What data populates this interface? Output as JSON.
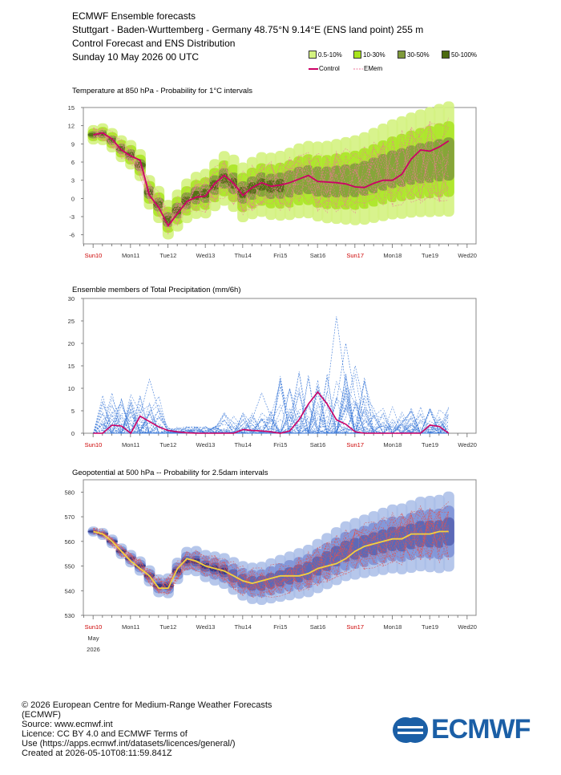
{
  "header": {
    "line1": "ECMWF Ensemble forecasts",
    "line2": "Stuttgart - Baden-Wurttemberg - Germany 48.75°N 9.14°E (ENS land point) 255 m",
    "line3": "Control Forecast and ENS Distribution",
    "line4": "Sunday 10 May 2026 00 UTC"
  },
  "legend": {
    "bins": [
      {
        "label": "0.5-10%",
        "color": "#d4f281"
      },
      {
        "label": "10-30%",
        "color": "#a8e41e"
      },
      {
        "label": "30-50%",
        "color": "#7f9a3b"
      },
      {
        "label": "50-100%",
        "color": "#4b6a10"
      }
    ],
    "control_label": "Control",
    "emem_label": "EMem"
  },
  "days": [
    "Sun10",
    "Mon11",
    "Tue12",
    "Wed13",
    "Thu14",
    "Fri15",
    "Sat16",
    "Sun17",
    "Mon18",
    "Tue19",
    "Wed20"
  ],
  "weekend_days": [
    "Sun10",
    "Sun17"
  ],
  "month_label": "May",
  "year_label": "2026",
  "chart_data": [
    {
      "type": "line",
      "title": "Temperature at 850 hPa - Probability for 1°C intervals",
      "ylim": [
        -7.5,
        15
      ],
      "yticks": [
        15,
        12,
        9,
        6,
        3,
        0,
        -3,
        -6
      ],
      "x_days": [
        0,
        0.25,
        0.5,
        0.75,
        1,
        1.25,
        1.5,
        1.75,
        2,
        2.25,
        2.5,
        2.75,
        3,
        3.25,
        3.5,
        3.75,
        4,
        4.25,
        4.5,
        4.75,
        5,
        5.25,
        5.5,
        5.75,
        6,
        6.25,
        6.5,
        6.75,
        7,
        7.25,
        7.5,
        7.75,
        8,
        8.25,
        8.5,
        8.75,
        9,
        9.25,
        9.5
      ],
      "series": [
        {
          "name": "Control",
          "color": "#cc0066",
          "values": [
            10.5,
            10.8,
            9.8,
            8.0,
            7.0,
            6.3,
            0.5,
            -1.5,
            -4.5,
            -2.5,
            -0.5,
            0.2,
            0.4,
            2.5,
            3.8,
            2.5,
            0.5,
            1.8,
            2.6,
            2.0,
            2.2,
            2.6,
            3.2,
            3.8,
            2.8,
            2.7,
            2.6,
            2.4,
            1.9,
            1.8,
            2.5,
            3.0,
            3.0,
            4.0,
            6.5,
            8.0,
            7.8,
            8.5,
            9.5
          ]
        },
        {
          "name": "EMem",
          "color": "#ee7799",
          "values": [
            10.5,
            10.6,
            9.6,
            8.2,
            7.2,
            5.5,
            1.0,
            -1.0,
            -3.5,
            -2.0,
            -0.4,
            0.5,
            0.8,
            2.2,
            3.3,
            2.5,
            1.0,
            1.7,
            2.3,
            2.0,
            2.1,
            2.4,
            2.9,
            3.1,
            2.8,
            2.7,
            2.8,
            2.9,
            3.0,
            3.3,
            3.8,
            4.3,
            4.8,
            5.1,
            5.5,
            5.8,
            6.0,
            6.3,
            6.5
          ]
        }
      ]
    },
    {
      "type": "line",
      "title": "Ensemble members of Total Precipitation (mm/6h)",
      "ylim": [
        0,
        30
      ],
      "yticks": [
        30,
        25,
        20,
        15,
        10,
        5,
        0
      ],
      "x_days": [
        0,
        0.25,
        0.5,
        0.75,
        1,
        1.25,
        1.5,
        1.75,
        2,
        2.25,
        2.5,
        2.75,
        3,
        3.25,
        3.5,
        3.75,
        4,
        4.25,
        4.5,
        4.75,
        5,
        5.25,
        5.5,
        5.75,
        6,
        6.25,
        6.5,
        6.75,
        7,
        7.25,
        7.5,
        7.75,
        8,
        8.25,
        8.5,
        8.75,
        9,
        9.25,
        9.5
      ],
      "series": [
        {
          "name": "Control",
          "color": "#cc0066",
          "values": [
            0,
            0,
            1.8,
            1.6,
            0,
            3.8,
            2.6,
            1.4,
            0.6,
            0.3,
            0.1,
            0,
            0,
            0,
            0,
            0,
            0.8,
            0.6,
            0.5,
            0.3,
            0,
            0.5,
            3.0,
            6.5,
            9.2,
            6.5,
            3.0,
            2.0,
            0.3,
            0,
            0,
            0,
            0,
            0,
            0,
            0,
            1.8,
            1.5,
            0
          ]
        }
      ]
    },
    {
      "type": "line",
      "title": "Geopotential at 500 hPa -- Probability for 2.5dam intervals",
      "ylim": [
        530,
        585
      ],
      "yticks": [
        580,
        570,
        560,
        550,
        540,
        530
      ],
      "x_days": [
        0,
        0.25,
        0.5,
        0.75,
        1,
        1.25,
        1.5,
        1.75,
        2,
        2.25,
        2.5,
        2.75,
        3,
        3.25,
        3.5,
        3.75,
        4,
        4.25,
        4.5,
        4.75,
        5,
        5.25,
        5.5,
        5.75,
        6,
        6.25,
        6.5,
        6.75,
        7,
        7.25,
        7.5,
        7.75,
        8,
        8.25,
        8.5,
        8.75,
        9,
        9.25,
        9.5
      ],
      "series": [
        {
          "name": "Control",
          "color": "#f4d03f",
          "values": [
            564,
            563,
            560,
            556,
            552,
            549,
            546,
            541,
            541,
            549,
            553,
            552,
            550,
            549,
            548,
            546,
            544,
            543,
            544,
            545,
            546,
            546,
            546,
            547,
            549,
            550,
            551,
            553,
            556,
            558,
            559,
            560,
            561,
            561,
            563,
            563,
            563,
            564,
            564
          ]
        },
        {
          "name": "EMem",
          "color": "#dd5555",
          "values": [
            564,
            563,
            560,
            556,
            553,
            550,
            546,
            542,
            542,
            548,
            552,
            552,
            550,
            549,
            548,
            546,
            544,
            543,
            543,
            544,
            545,
            546,
            547,
            548,
            550,
            552,
            554,
            556,
            557,
            558,
            559,
            560,
            561,
            561,
            562,
            563,
            563,
            563,
            564
          ]
        }
      ]
    }
  ],
  "footer": {
    "l1": "© 2026 European Centre for Medium-Range Weather Forecasts",
    "l2": "(ECMWF)",
    "l3": "Source: www.ecmwf.int",
    "l4": "Licence: CC BY 4.0 and ECMWF Terms of",
    "l5": "Use (https://apps.ecmwf.int/datasets/licences/general/)",
    "l6": "Created at 2026-05-10T08:11:59.841Z"
  },
  "logo_text": "ECMWF"
}
